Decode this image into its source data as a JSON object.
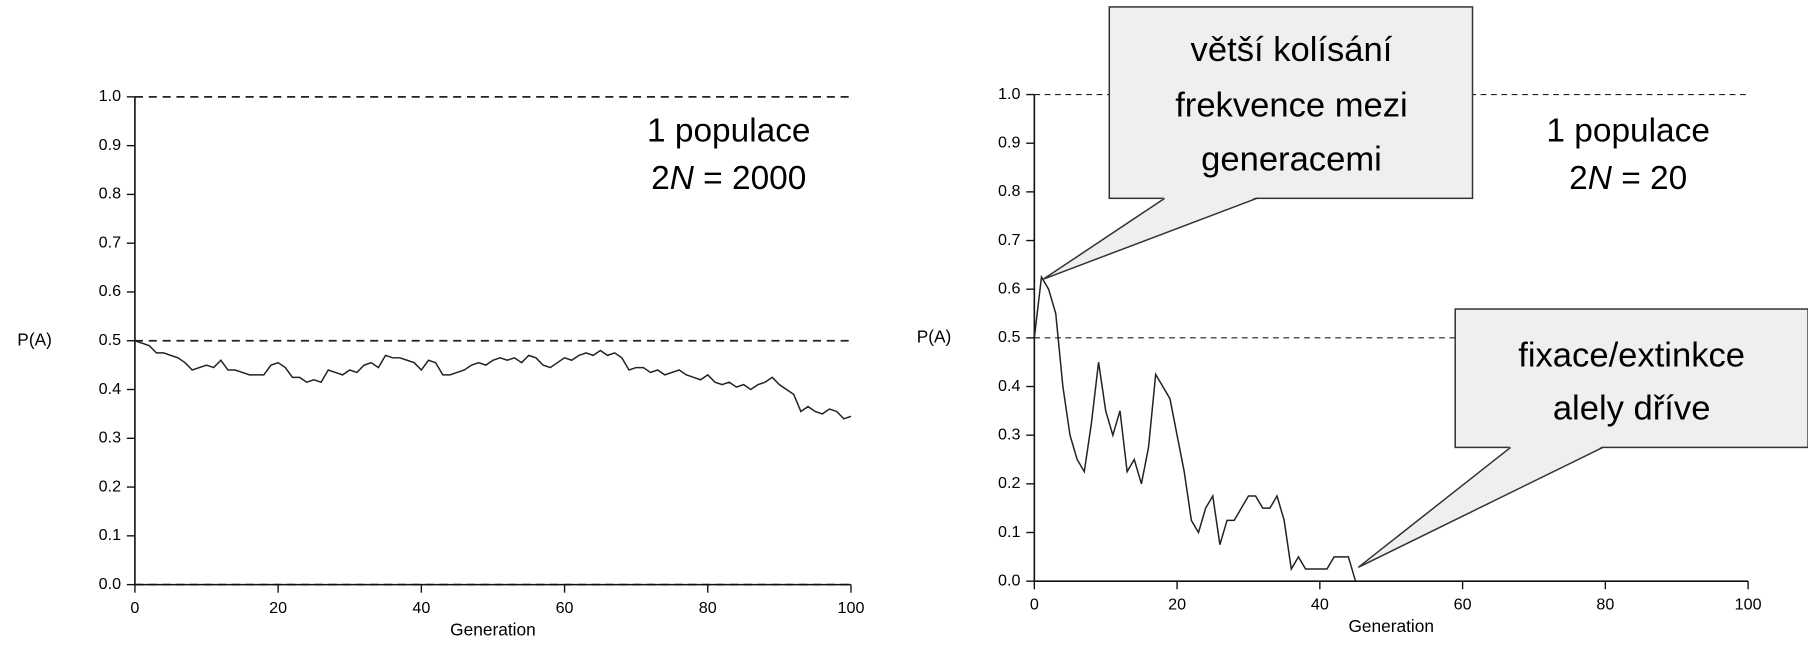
{
  "chart_data": [
    {
      "type": "line",
      "x_label": "Generation",
      "y_label": "P(A)",
      "xlim": [
        0,
        100
      ],
      "xticks": [
        0,
        20,
        40,
        60,
        80,
        100
      ],
      "ylim": [
        0,
        1
      ],
      "yticks": [
        {
          "value": 0,
          "label": "0.0"
        },
        0.1,
        0.2,
        0.3,
        0.4,
        0.5,
        0.6,
        0.7,
        0.8,
        0.9,
        {
          "value": 1,
          "label": "1.0"
        }
      ],
      "reference_lines": [
        0,
        0.5,
        1
      ],
      "annotation": [
        "1 populace",
        [
          "2",
          "N",
          " = 2000"
        ]
      ],
      "color": "#222222",
      "x": [
        0,
        1,
        2,
        3,
        4,
        5,
        6,
        7,
        8,
        9,
        10,
        11,
        12,
        13,
        14,
        15,
        16,
        17,
        18,
        19,
        20,
        21,
        22,
        23,
        24,
        25,
        26,
        27,
        28,
        29,
        30,
        31,
        32,
        33,
        34,
        35,
        36,
        37,
        38,
        39,
        40,
        41,
        42,
        43,
        44,
        45,
        46,
        47,
        48,
        49,
        50,
        51,
        52,
        53,
        54,
        55,
        56,
        57,
        58,
        59,
        60,
        61,
        62,
        63,
        64,
        65,
        66,
        67,
        68,
        69,
        70,
        71,
        72,
        73,
        74,
        75,
        76,
        77,
        78,
        79,
        80,
        81,
        82,
        83,
        84,
        85,
        86,
        87,
        88,
        89,
        90,
        91,
        92,
        93,
        94,
        95,
        96,
        97,
        98,
        99,
        100
      ],
      "values": [
        0.5,
        0.495,
        0.49,
        0.475,
        0.475,
        0.47,
        0.465,
        0.455,
        0.44,
        0.445,
        0.45,
        0.445,
        0.46,
        0.44,
        0.44,
        0.435,
        0.43,
        0.43,
        0.43,
        0.45,
        0.455,
        0.445,
        0.425,
        0.425,
        0.415,
        0.42,
        0.415,
        0.44,
        0.435,
        0.43,
        0.44,
        0.435,
        0.45,
        0.455,
        0.445,
        0.47,
        0.465,
        0.465,
        0.46,
        0.455,
        0.44,
        0.46,
        0.455,
        0.43,
        0.43,
        0.435,
        0.44,
        0.45,
        0.455,
        0.45,
        0.46,
        0.465,
        0.46,
        0.465,
        0.455,
        0.47,
        0.465,
        0.45,
        0.445,
        0.455,
        0.465,
        0.46,
        0.47,
        0.475,
        0.47,
        0.48,
        0.47,
        0.475,
        0.465,
        0.44,
        0.445,
        0.445,
        0.435,
        0.44,
        0.43,
        0.435,
        0.44,
        0.43,
        0.425,
        0.42,
        0.43,
        0.415,
        0.41,
        0.415,
        0.405,
        0.41,
        0.4,
        0.41,
        0.415,
        0.425,
        0.41,
        0.4,
        0.39,
        0.355,
        0.365,
        0.355,
        0.35,
        0.36,
        0.355,
        0.34,
        0.345
      ]
    },
    {
      "type": "line",
      "x_label": "Generation",
      "y_label": "P(A)",
      "xlim": [
        0,
        100
      ],
      "xticks": [
        0,
        20,
        40,
        60,
        80,
        100
      ],
      "ylim": [
        0,
        1
      ],
      "yticks": [
        {
          "value": 0,
          "label": "0.0"
        },
        0.1,
        0.2,
        0.3,
        0.4,
        0.5,
        0.6,
        0.7,
        0.8,
        0.9,
        {
          "value": 1,
          "label": "1.0"
        }
      ],
      "reference_lines": [
        0,
        0.5,
        1
      ],
      "annotation": [
        "1 populace",
        [
          "2",
          "N",
          " = 20"
        ]
      ],
      "callouts": [
        [
          "větší kolísání",
          "frekvence mezi",
          "generacemi"
        ],
        [
          "fixace/extinkce",
          "alely dříve"
        ]
      ],
      "color": "#222222",
      "x": [
        0,
        1,
        2,
        3,
        4,
        5,
        6,
        7,
        8,
        9,
        10,
        11,
        12,
        13,
        14,
        15,
        16,
        17,
        18,
        19,
        20,
        21,
        22,
        23,
        24,
        25,
        26,
        27,
        28,
        29,
        30,
        31,
        32,
        33,
        34,
        35,
        36,
        37,
        38,
        39,
        40,
        41,
        42,
        43,
        44,
        45
      ],
      "values": [
        0.5,
        0.625,
        0.6,
        0.55,
        0.4,
        0.3,
        0.25,
        0.225,
        0.325,
        0.45,
        0.35,
        0.3,
        0.35,
        0.225,
        0.25,
        0.2,
        0.275,
        0.425,
        0.4,
        0.375,
        0.3,
        0.225,
        0.125,
        0.1,
        0.15,
        0.175,
        0.075,
        0.125,
        0.125,
        0.15,
        0.175,
        0.175,
        0.15,
        0.15,
        0.175,
        0.125,
        0.025,
        0.05,
        0.025,
        0.025,
        0.025,
        0.025,
        0.05,
        0.05,
        0.05,
        0
      ]
    }
  ]
}
